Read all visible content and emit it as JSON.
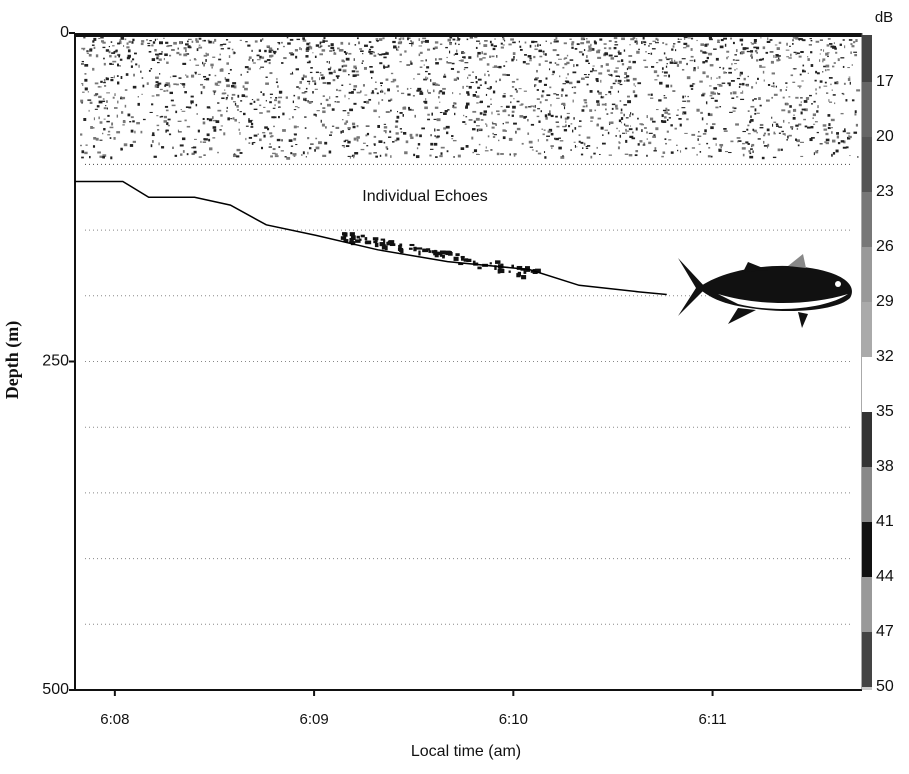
{
  "chart_data": {
    "type": "line",
    "x_label": "Local time (am)",
    "y_label": "Depth (m)",
    "annotation": "Individual Echoes",
    "x": [
      7.8,
      8.04,
      8.17,
      8.4,
      8.58,
      8.76,
      9.01,
      9.32,
      9.67,
      10.08,
      10.33,
      10.63,
      10.77
    ],
    "series": [
      {
        "color": "#000000",
        "values": [
          113,
          113,
          125,
          125,
          131,
          146,
          154,
          165,
          174,
          180,
          192,
          197,
          199
        ]
      }
    ],
    "xlim": [
      7.8,
      11.75
    ],
    "xticks": [
      {
        "value": 8,
        "label": "6:08"
      },
      {
        "value": 9,
        "label": "6:09"
      },
      {
        "value": 10,
        "label": "6:10"
      },
      {
        "value": 11,
        "label": "6:11"
      }
    ],
    "ylim": [
      0,
      500
    ],
    "y_inverted": true,
    "yticks": [
      0,
      250,
      500
    ],
    "dotted_grid": [
      100,
      150,
      200,
      250,
      300,
      350,
      400,
      450
    ],
    "colorbar": {
      "label": "dB",
      "ticks": [
        17,
        20,
        23,
        26,
        29,
        32,
        35,
        38,
        41,
        44,
        47,
        50
      ],
      "colors": [
        "#444",
        "#666",
        "#555",
        "#777",
        "#999",
        "#aaa",
        "#ffffff",
        "#333",
        "#888",
        "#111",
        "#999",
        "#444",
        "#ccc"
      ]
    }
  }
}
